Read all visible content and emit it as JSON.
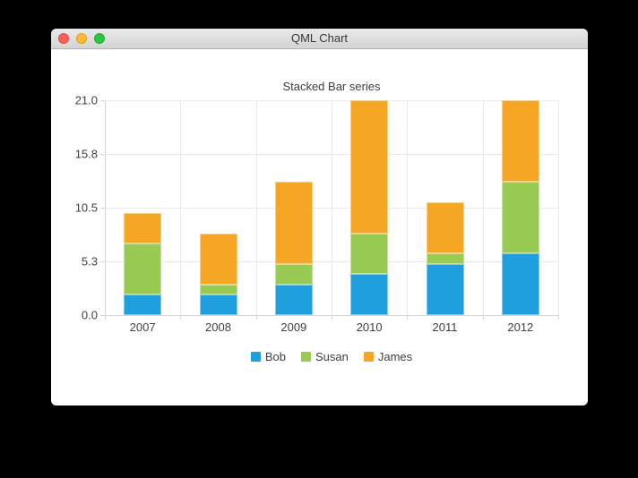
{
  "window": {
    "title": "QML Chart",
    "traffic_lights": {
      "close": "#ff5f57",
      "minimize": "#febc2e",
      "zoom": "#28c840"
    }
  },
  "chart_data": {
    "type": "bar",
    "stacked": true,
    "title": "Stacked Bar series",
    "categories": [
      "2007",
      "2008",
      "2009",
      "2010",
      "2011",
      "2012"
    ],
    "series": [
      {
        "name": "Bob",
        "color": "#209fdf",
        "values": [
          2,
          2,
          3,
          4,
          5,
          6
        ]
      },
      {
        "name": "Susan",
        "color": "#99ca53",
        "values": [
          5,
          1,
          2,
          4,
          1,
          7
        ]
      },
      {
        "name": "James",
        "color": "#f6a625",
        "values": [
          3,
          5,
          8,
          13,
          5,
          8
        ]
      }
    ],
    "ylim": [
      0,
      21
    ],
    "y_ticks": [
      {
        "value": 0,
        "label": "0.0"
      },
      {
        "value": 5.25,
        "label": "5.3"
      },
      {
        "value": 10.5,
        "label": "10.5"
      },
      {
        "value": 15.75,
        "label": "15.8"
      },
      {
        "value": 21,
        "label": "21.0"
      }
    ],
    "grid": true,
    "legend_position": "bottom"
  }
}
